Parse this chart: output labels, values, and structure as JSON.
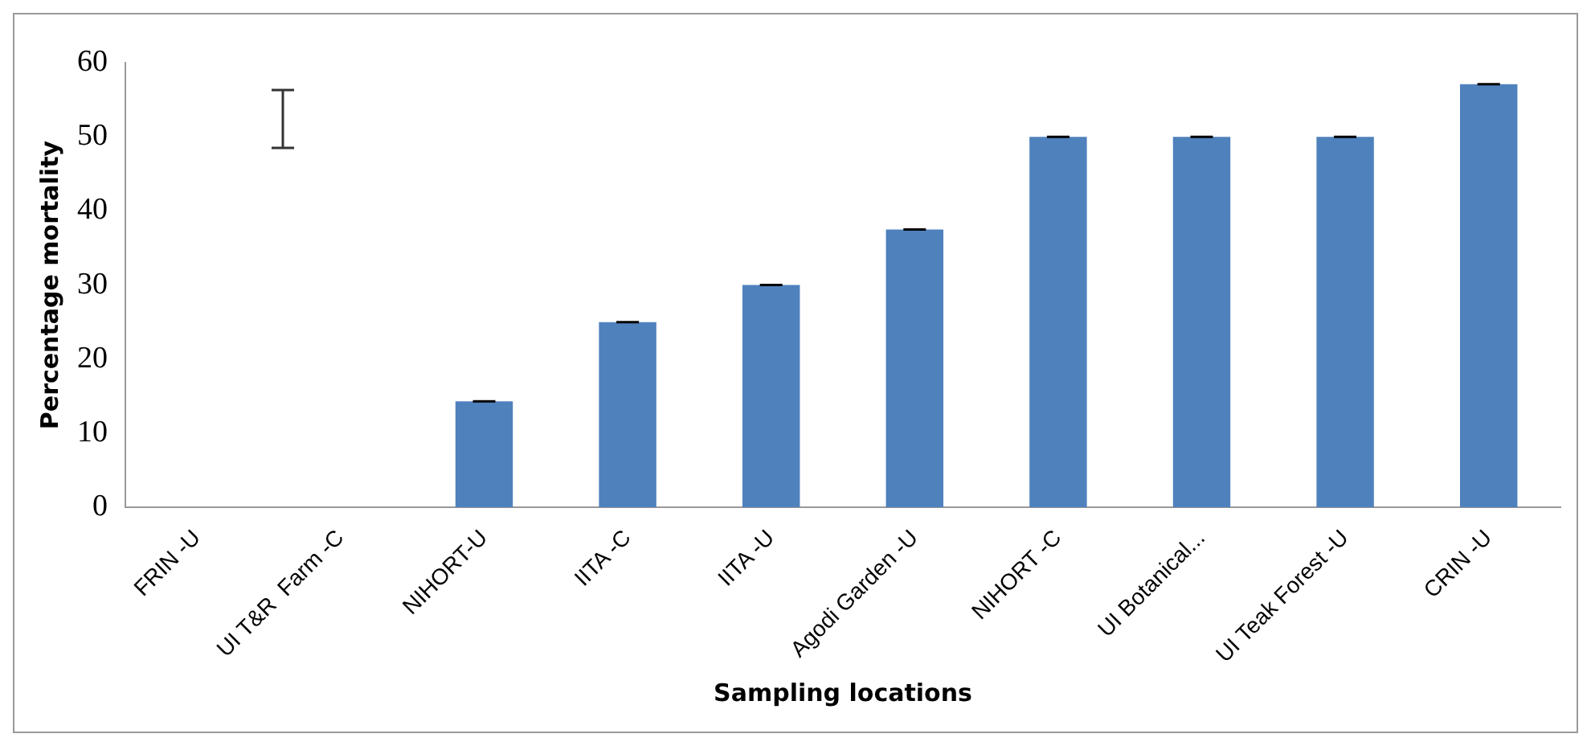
{
  "chart_data": {
    "type": "bar",
    "xlabel": "Sampling locations",
    "ylabel": "Percentage mortality",
    "categories": [
      "FRIN -U",
      "UI T&R  Farm -C",
      "NIHORT-U",
      "IITA -C",
      "IITA -U",
      "Agodi Garden -U",
      "NIHORT -C",
      "UI Botanical...",
      "UI Teak Forest -U",
      "CRIN -U"
    ],
    "values": [
      0,
      0,
      14.3,
      25,
      30,
      37.5,
      50,
      50,
      50,
      57.1
    ],
    "errors": [
      null,
      null,
      0,
      0,
      0,
      0,
      0,
      0,
      0,
      0
    ],
    "color": "#4f81bd",
    "ylim": [
      0,
      60
    ],
    "yticks": [
      0,
      10,
      20,
      30,
      40,
      50,
      60
    ],
    "grid": false,
    "legend": false
  }
}
